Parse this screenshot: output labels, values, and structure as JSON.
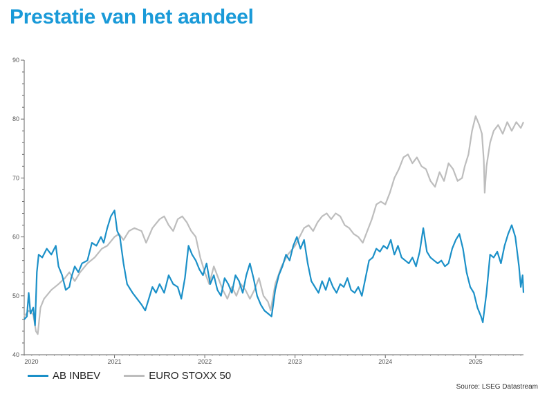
{
  "page": {
    "title": "Prestatie van het aandeel",
    "source": "Source: LSEG Datastream"
  },
  "chart_data": {
    "type": "line",
    "title": "Prestatie van het aandeel",
    "xlabel": "",
    "ylabel": "",
    "xlim": [
      2020.0,
      2025.53
    ],
    "ylim": [
      40,
      90
    ],
    "yticks": [
      40,
      50,
      60,
      70,
      80,
      90
    ],
    "xticks": [
      {
        "x": 2020.0,
        "label": "2020"
      },
      {
        "x": 2021.0,
        "label": "2021"
      },
      {
        "x": 2022.0,
        "label": "2022"
      },
      {
        "x": 2023.0,
        "label": "2023"
      },
      {
        "x": 2024.0,
        "label": "2024"
      },
      {
        "x": 2025.0,
        "label": "2025"
      }
    ],
    "grid": false,
    "legend": "bottom-left",
    "series": [
      {
        "name": "EURO STOXX 50",
        "color": "#bdbdbd",
        "points": [
          [
            2020.0,
            46.5
          ],
          [
            2020.05,
            47.5
          ],
          [
            2020.1,
            46.8
          ],
          [
            2020.13,
            44.0
          ],
          [
            2020.15,
            43.5
          ],
          [
            2020.18,
            48.0
          ],
          [
            2020.22,
            49.5
          ],
          [
            2020.3,
            51.0
          ],
          [
            2020.38,
            52.0
          ],
          [
            2020.45,
            53.0
          ],
          [
            2020.5,
            54.0
          ],
          [
            2020.56,
            52.5
          ],
          [
            2020.62,
            54.0
          ],
          [
            2020.7,
            55.5
          ],
          [
            2020.78,
            56.5
          ],
          [
            2020.86,
            58.0
          ],
          [
            2020.92,
            58.5
          ],
          [
            2021.0,
            60.0
          ],
          [
            2021.05,
            60.5
          ],
          [
            2021.1,
            59.5
          ],
          [
            2021.16,
            61.0
          ],
          [
            2021.22,
            61.5
          ],
          [
            2021.3,
            61.0
          ],
          [
            2021.35,
            59.0
          ],
          [
            2021.42,
            61.5
          ],
          [
            2021.5,
            63.0
          ],
          [
            2021.55,
            63.5
          ],
          [
            2021.6,
            62.0
          ],
          [
            2021.65,
            61.0
          ],
          [
            2021.7,
            63.0
          ],
          [
            2021.75,
            63.5
          ],
          [
            2021.8,
            62.5
          ],
          [
            2021.85,
            61.0
          ],
          [
            2021.9,
            60.0
          ],
          [
            2021.95,
            56.5
          ],
          [
            2022.0,
            54.0
          ],
          [
            2022.05,
            52.0
          ],
          [
            2022.1,
            55.0
          ],
          [
            2022.15,
            53.0
          ],
          [
            2022.2,
            51.0
          ],
          [
            2022.25,
            49.5
          ],
          [
            2022.3,
            51.5
          ],
          [
            2022.35,
            50.0
          ],
          [
            2022.4,
            52.0
          ],
          [
            2022.45,
            51.0
          ],
          [
            2022.5,
            49.5
          ],
          [
            2022.55,
            51.0
          ],
          [
            2022.6,
            53.0
          ],
          [
            2022.65,
            50.0
          ],
          [
            2022.7,
            49.0
          ],
          [
            2022.73,
            47.5
          ],
          [
            2022.78,
            52.0
          ],
          [
            2022.85,
            55.0
          ],
          [
            2022.92,
            57.0
          ],
          [
            2023.0,
            58.5
          ],
          [
            2023.05,
            60.0
          ],
          [
            2023.1,
            61.5
          ],
          [
            2023.15,
            62.0
          ],
          [
            2023.2,
            61.0
          ],
          [
            2023.25,
            62.5
          ],
          [
            2023.3,
            63.5
          ],
          [
            2023.35,
            64.0
          ],
          [
            2023.4,
            63.0
          ],
          [
            2023.45,
            64.0
          ],
          [
            2023.5,
            63.5
          ],
          [
            2023.55,
            62.0
          ],
          [
            2023.6,
            61.5
          ],
          [
            2023.65,
            60.5
          ],
          [
            2023.7,
            60.0
          ],
          [
            2023.75,
            59.0
          ],
          [
            2023.8,
            61.0
          ],
          [
            2023.85,
            63.0
          ],
          [
            2023.9,
            65.5
          ],
          [
            2023.95,
            66.0
          ],
          [
            2024.0,
            65.5
          ],
          [
            2024.05,
            67.5
          ],
          [
            2024.1,
            70.0
          ],
          [
            2024.15,
            71.5
          ],
          [
            2024.2,
            73.5
          ],
          [
            2024.25,
            74.0
          ],
          [
            2024.3,
            72.5
          ],
          [
            2024.35,
            73.5
          ],
          [
            2024.4,
            72.0
          ],
          [
            2024.45,
            71.5
          ],
          [
            2024.5,
            69.5
          ],
          [
            2024.55,
            68.5
          ],
          [
            2024.6,
            71.0
          ],
          [
            2024.65,
            69.5
          ],
          [
            2024.7,
            72.5
          ],
          [
            2024.75,
            71.5
          ],
          [
            2024.8,
            69.5
          ],
          [
            2024.85,
            70.0
          ],
          [
            2024.88,
            72.0
          ],
          [
            2024.92,
            74.0
          ],
          [
            2024.96,
            78.0
          ],
          [
            2025.0,
            80.5
          ],
          [
            2025.04,
            79.0
          ],
          [
            2025.07,
            77.5
          ],
          [
            2025.09,
            73.0
          ],
          [
            2025.1,
            67.5
          ],
          [
            2025.12,
            72.0
          ],
          [
            2025.16,
            76.0
          ],
          [
            2025.2,
            78.0
          ],
          [
            2025.25,
            79.0
          ],
          [
            2025.3,
            77.5
          ],
          [
            2025.35,
            79.5
          ],
          [
            2025.4,
            78.0
          ],
          [
            2025.45,
            79.5
          ],
          [
            2025.5,
            78.5
          ],
          [
            2025.53,
            79.5
          ]
        ]
      },
      {
        "name": "AB INBEV",
        "color": "#1b90c8",
        "points": [
          [
            2020.0,
            46.0
          ],
          [
            2020.03,
            46.5
          ],
          [
            2020.05,
            50.5
          ],
          [
            2020.07,
            47.0
          ],
          [
            2020.1,
            48.0
          ],
          [
            2020.12,
            45.0
          ],
          [
            2020.14,
            54.0
          ],
          [
            2020.16,
            57.0
          ],
          [
            2020.2,
            56.5
          ],
          [
            2020.25,
            58.0
          ],
          [
            2020.3,
            57.0
          ],
          [
            2020.35,
            58.5
          ],
          [
            2020.38,
            55.0
          ],
          [
            2020.42,
            53.5
          ],
          [
            2020.46,
            51.0
          ],
          [
            2020.5,
            51.5
          ],
          [
            2020.52,
            53.0
          ],
          [
            2020.56,
            55.0
          ],
          [
            2020.6,
            54.0
          ],
          [
            2020.64,
            55.5
          ],
          [
            2020.7,
            56.0
          ],
          [
            2020.75,
            59.0
          ],
          [
            2020.8,
            58.5
          ],
          [
            2020.85,
            60.0
          ],
          [
            2020.88,
            59.0
          ],
          [
            2020.92,
            61.5
          ],
          [
            2020.96,
            63.5
          ],
          [
            2021.0,
            64.5
          ],
          [
            2021.03,
            61.0
          ],
          [
            2021.06,
            60.0
          ],
          [
            2021.1,
            55.5
          ],
          [
            2021.14,
            52.0
          ],
          [
            2021.2,
            50.5
          ],
          [
            2021.25,
            49.5
          ],
          [
            2021.3,
            48.5
          ],
          [
            2021.34,
            47.5
          ],
          [
            2021.38,
            49.5
          ],
          [
            2021.42,
            51.5
          ],
          [
            2021.46,
            50.5
          ],
          [
            2021.5,
            52.0
          ],
          [
            2021.55,
            50.5
          ],
          [
            2021.6,
            53.5
          ],
          [
            2021.65,
            52.0
          ],
          [
            2021.7,
            51.5
          ],
          [
            2021.74,
            49.5
          ],
          [
            2021.78,
            53.0
          ],
          [
            2021.82,
            58.5
          ],
          [
            2021.86,
            57.0
          ],
          [
            2021.9,
            56.0
          ],
          [
            2021.94,
            54.5
          ],
          [
            2021.98,
            53.5
          ],
          [
            2022.02,
            55.5
          ],
          [
            2022.06,
            52.0
          ],
          [
            2022.1,
            53.5
          ],
          [
            2022.14,
            51.0
          ],
          [
            2022.18,
            50.0
          ],
          [
            2022.22,
            53.0
          ],
          [
            2022.26,
            52.0
          ],
          [
            2022.3,
            50.5
          ],
          [
            2022.34,
            53.5
          ],
          [
            2022.38,
            52.5
          ],
          [
            2022.42,
            50.5
          ],
          [
            2022.46,
            53.5
          ],
          [
            2022.5,
            55.5
          ],
          [
            2022.54,
            53.0
          ],
          [
            2022.58,
            50.0
          ],
          [
            2022.62,
            48.5
          ],
          [
            2022.66,
            47.5
          ],
          [
            2022.7,
            47.0
          ],
          [
            2022.74,
            46.5
          ],
          [
            2022.78,
            51.0
          ],
          [
            2022.82,
            53.5
          ],
          [
            2022.86,
            55.0
          ],
          [
            2022.9,
            57.0
          ],
          [
            2022.94,
            56.0
          ],
          [
            2022.98,
            58.5
          ],
          [
            2023.02,
            60.0
          ],
          [
            2023.06,
            58.0
          ],
          [
            2023.1,
            59.5
          ],
          [
            2023.14,
            55.5
          ],
          [
            2023.18,
            52.5
          ],
          [
            2023.22,
            51.5
          ],
          [
            2023.26,
            50.5
          ],
          [
            2023.3,
            52.5
          ],
          [
            2023.34,
            51.0
          ],
          [
            2023.38,
            53.0
          ],
          [
            2023.42,
            51.5
          ],
          [
            2023.46,
            50.5
          ],
          [
            2023.5,
            52.0
          ],
          [
            2023.54,
            51.5
          ],
          [
            2023.58,
            53.0
          ],
          [
            2023.62,
            51.0
          ],
          [
            2023.66,
            50.5
          ],
          [
            2023.7,
            51.5
          ],
          [
            2023.74,
            50.0
          ],
          [
            2023.78,
            53.0
          ],
          [
            2023.82,
            56.0
          ],
          [
            2023.86,
            56.5
          ],
          [
            2023.9,
            58.0
          ],
          [
            2023.94,
            57.5
          ],
          [
            2023.98,
            58.5
          ],
          [
            2024.02,
            58.0
          ],
          [
            2024.06,
            59.5
          ],
          [
            2024.1,
            57.0
          ],
          [
            2024.14,
            58.5
          ],
          [
            2024.18,
            56.5
          ],
          [
            2024.22,
            56.0
          ],
          [
            2024.26,
            55.5
          ],
          [
            2024.3,
            56.5
          ],
          [
            2024.34,
            55.0
          ],
          [
            2024.38,
            57.5
          ],
          [
            2024.42,
            61.5
          ],
          [
            2024.46,
            57.5
          ],
          [
            2024.5,
            56.5
          ],
          [
            2024.54,
            56.0
          ],
          [
            2024.58,
            55.5
          ],
          [
            2024.62,
            56.0
          ],
          [
            2024.66,
            55.0
          ],
          [
            2024.7,
            55.5
          ],
          [
            2024.74,
            58.0
          ],
          [
            2024.78,
            59.5
          ],
          [
            2024.82,
            60.5
          ],
          [
            2024.86,
            58.0
          ],
          [
            2024.9,
            54.0
          ],
          [
            2024.94,
            51.5
          ],
          [
            2024.98,
            50.5
          ],
          [
            2025.02,
            48.0
          ],
          [
            2025.06,
            46.5
          ],
          [
            2025.08,
            45.5
          ],
          [
            2025.12,
            50.5
          ],
          [
            2025.16,
            57.0
          ],
          [
            2025.2,
            56.5
          ],
          [
            2025.24,
            57.5
          ],
          [
            2025.28,
            55.5
          ],
          [
            2025.32,
            58.5
          ],
          [
            2025.36,
            60.5
          ],
          [
            2025.4,
            62.0
          ],
          [
            2025.44,
            60.0
          ],
          [
            2025.48,
            55.0
          ],
          [
            2025.5,
            51.5
          ],
          [
            2025.52,
            53.5
          ],
          [
            2025.53,
            50.5
          ]
        ]
      }
    ]
  }
}
